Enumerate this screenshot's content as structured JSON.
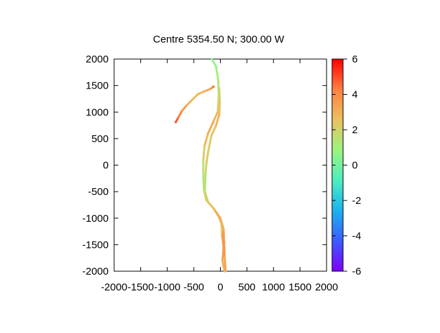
{
  "chart_data": {
    "type": "scatter",
    "title": "Centre 5354.50 N; 300.00  W",
    "xlabel": "",
    "ylabel": "",
    "xlim": [
      -2000,
      2000
    ],
    "ylim": [
      -2000,
      2000
    ],
    "xticks": [
      "-2000",
      "-1500",
      "-1000",
      "-500",
      "0",
      "500",
      "1000",
      "1500",
      "2000"
    ],
    "yticks": [
      "2000",
      "1500",
      "1000",
      "500",
      "0",
      "-500",
      "-1000",
      "-1500",
      "-2000"
    ],
    "grid": false,
    "colorbar": {
      "range": [
        -6,
        6
      ],
      "ticks": [
        "6",
        "4",
        "2",
        "0",
        "-2",
        "-4",
        "-6"
      ],
      "colormap": "rainbow",
      "stops": [
        "#8000ff",
        "#3b5bff",
        "#1ab2f0",
        "#4deec0",
        "#9cf57d",
        "#ecc060",
        "#ff8040",
        "#ff0000"
      ]
    },
    "series": [
      {
        "points": [
          {
            "x": -840,
            "y": 810,
            "v": 5.0
          },
          {
            "x": -800,
            "y": 880,
            "v": 4.6
          },
          {
            "x": -730,
            "y": 1010,
            "v": 4.0
          },
          {
            "x": -640,
            "y": 1120,
            "v": 3.2
          },
          {
            "x": -520,
            "y": 1240,
            "v": 2.6
          },
          {
            "x": -420,
            "y": 1340,
            "v": 2.8
          },
          {
            "x": -300,
            "y": 1390,
            "v": 3.0
          },
          {
            "x": -180,
            "y": 1440,
            "v": 3.4
          },
          {
            "x": -130,
            "y": 1480,
            "v": 4.6
          }
        ]
      },
      {
        "points": [
          {
            "x": -160,
            "y": 2000,
            "v": 0.5
          },
          {
            "x": -80,
            "y": 1860,
            "v": 0.7
          },
          {
            "x": -40,
            "y": 1600,
            "v": 1.2
          },
          {
            "x": -30,
            "y": 1300,
            "v": 1.6
          },
          {
            "x": -50,
            "y": 1000,
            "v": 2.6
          },
          {
            "x": -140,
            "y": 800,
            "v": 3.2
          },
          {
            "x": -230,
            "y": 600,
            "v": 3.0
          },
          {
            "x": -300,
            "y": 350,
            "v": 2.6
          },
          {
            "x": -320,
            "y": 100,
            "v": 1.8
          },
          {
            "x": -320,
            "y": -200,
            "v": 1.4
          },
          {
            "x": -310,
            "y": -450,
            "v": 1.6
          },
          {
            "x": -270,
            "y": -650,
            "v": 2.2
          },
          {
            "x": -140,
            "y": -800,
            "v": 3.2
          },
          {
            "x": -40,
            "y": -950,
            "v": 3.5
          },
          {
            "x": 20,
            "y": -1100,
            "v": 1.2
          },
          {
            "x": 30,
            "y": -1300,
            "v": 3.0
          },
          {
            "x": 60,
            "y": -1550,
            "v": 3.6
          },
          {
            "x": 40,
            "y": -1800,
            "v": 3.2
          },
          {
            "x": 80,
            "y": -2000,
            "v": 3.0
          }
        ]
      },
      {
        "points": [
          {
            "x": -20,
            "y": 1450,
            "v": 1.8
          },
          {
            "x": -10,
            "y": 1200,
            "v": 2.0
          },
          {
            "x": -20,
            "y": 950,
            "v": 3.0
          },
          {
            "x": -80,
            "y": 750,
            "v": 2.8
          },
          {
            "x": -170,
            "y": 550,
            "v": 2.4
          },
          {
            "x": -230,
            "y": 250,
            "v": 2.0
          },
          {
            "x": -260,
            "y": 50,
            "v": 2.4
          },
          {
            "x": -280,
            "y": -200,
            "v": 1.2
          },
          {
            "x": -290,
            "y": -500,
            "v": 1.6
          },
          {
            "x": -230,
            "y": -700,
            "v": 2.2
          },
          {
            "x": -100,
            "y": -850,
            "v": 2.8
          },
          {
            "x": 0,
            "y": -1000,
            "v": 3.2
          },
          {
            "x": 60,
            "y": -1200,
            "v": 3.0
          },
          {
            "x": 70,
            "y": -1450,
            "v": 4.2
          },
          {
            "x": 80,
            "y": -1700,
            "v": 3.4
          },
          {
            "x": 100,
            "y": -2000,
            "v": 3.2
          }
        ]
      }
    ]
  }
}
